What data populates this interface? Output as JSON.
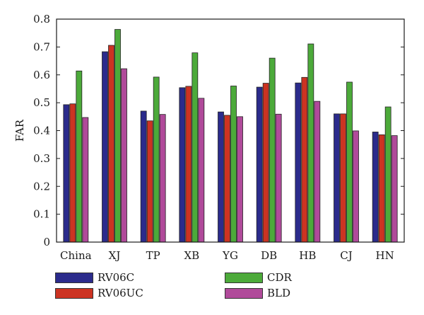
{
  "chart_data": {
    "type": "bar",
    "ylabel": "FAR",
    "xlabel": "",
    "title": "",
    "ylim": [
      0,
      0.8
    ],
    "yticks": [
      "0",
      "0.1",
      "0.2",
      "0.3",
      "0.4",
      "0.5",
      "0.6",
      "0.7",
      "0.8"
    ],
    "grid": false,
    "legend_placement": "bottom",
    "categories": [
      "China",
      "XJ",
      "TP",
      "XB",
      "YG",
      "DB",
      "HB",
      "CJ",
      "HN"
    ],
    "series": [
      {
        "name": "RV06C",
        "color": "#2b2b8c",
        "values": [
          0.493,
          0.683,
          0.47,
          0.554,
          0.467,
          0.556,
          0.571,
          0.46,
          0.395
        ]
      },
      {
        "name": "RV06UC",
        "color": "#cc3322",
        "values": [
          0.496,
          0.706,
          0.435,
          0.559,
          0.455,
          0.57,
          0.591,
          0.46,
          0.385
        ]
      },
      {
        "name": "CDR",
        "color": "#4caa3a",
        "values": [
          0.614,
          0.763,
          0.592,
          0.679,
          0.56,
          0.66,
          0.711,
          0.574,
          0.485
        ]
      },
      {
        "name": "BLD",
        "color": "#b04a9a",
        "values": [
          0.447,
          0.622,
          0.458,
          0.516,
          0.45,
          0.459,
          0.505,
          0.399,
          0.382
        ]
      }
    ]
  }
}
